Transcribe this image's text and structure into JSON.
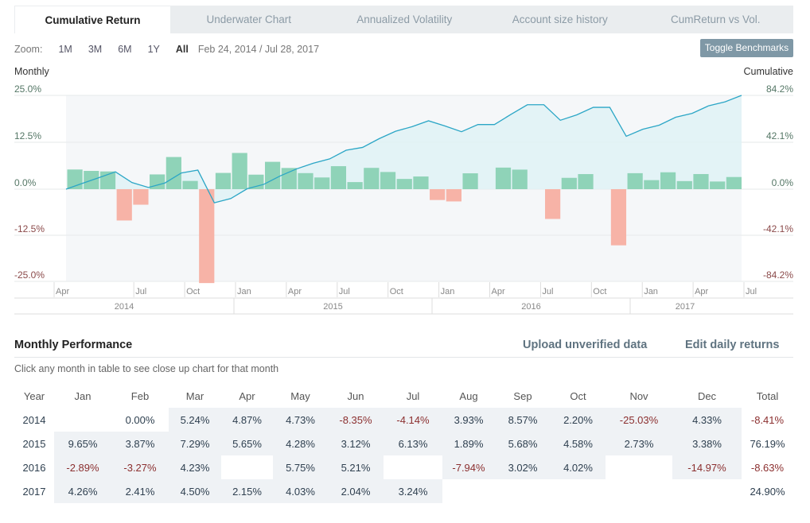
{
  "tabs": [
    "Cumulative Return",
    "Underwater Chart",
    "Annualized Volatility",
    "Account size history",
    "CumReturn vs Vol."
  ],
  "zoom": {
    "label": "Zoom:",
    "options": [
      "1M",
      "3M",
      "6M",
      "1Y",
      "All"
    ],
    "selected": "All",
    "range": "Feb 24, 2014 / Jul 28, 2017"
  },
  "toggle_benchmarks": "Toggle Benchmarks",
  "chart_data": {
    "type": "bar+line",
    "left_axis_title": "Monthly",
    "right_axis_title": "Cumulative",
    "left_ticks": [
      "25.0%",
      "12.5%",
      "0.0%",
      "-12.5%",
      "-25.0%"
    ],
    "right_ticks": [
      "84.2%",
      "42.1%",
      "0.0%",
      "-42.1%",
      "-84.2%"
    ],
    "ylim_left": [
      -25,
      25
    ],
    "ylim_right": [
      -84.2,
      84.2
    ],
    "month_ticks": [
      "Apr",
      "Jul",
      "Oct",
      "Jan",
      "Apr",
      "Jul",
      "Oct",
      "Jan",
      "Apr",
      "Jul",
      "Oct",
      "Jan",
      "Apr",
      "Jul"
    ],
    "year_ticks": [
      "2014",
      "2015",
      "2016",
      "2017"
    ],
    "colors": {
      "positive": "#8fd3b8",
      "negative": "#f7b3a7",
      "line": "#2ba6c6",
      "area": "#dff1f5",
      "plot_bg": "#f5f7f9"
    },
    "series": [
      {
        "type": "bar",
        "note": "monthly returns (%) Mar 2014 – Jul 2017",
        "values": [
          5.24,
          4.87,
          4.73,
          -8.35,
          -4.14,
          3.93,
          8.57,
          2.2,
          -25.03,
          4.33,
          9.65,
          3.87,
          7.29,
          5.65,
          4.28,
          3.12,
          6.13,
          1.89,
          5.68,
          4.58,
          2.73,
          3.38,
          -2.89,
          -3.27,
          4.23,
          null,
          5.75,
          5.21,
          null,
          -7.94,
          3.02,
          4.02,
          null,
          -14.97,
          4.26,
          2.41,
          4.5,
          2.15,
          4.03,
          2.04,
          3.24
        ]
      }
    ]
  },
  "monthly": {
    "title": "Monthly Performance",
    "upload": "Upload unverified data",
    "edit": "Edit daily returns",
    "hint": "Click any month in table to see close up chart for that month",
    "headers": [
      "Year",
      "Jan",
      "Feb",
      "Mar",
      "Apr",
      "May",
      "Jun",
      "Jul",
      "Aug",
      "Sep",
      "Oct",
      "Nov",
      "Dec",
      "Total"
    ],
    "rows": [
      [
        "2014",
        "",
        "0.00%",
        "5.24%",
        "4.87%",
        "4.73%",
        "-8.35%",
        "-4.14%",
        "3.93%",
        "8.57%",
        "2.20%",
        "-25.03%",
        "4.33%",
        "-8.41%"
      ],
      [
        "2015",
        "9.65%",
        "3.87%",
        "7.29%",
        "5.65%",
        "4.28%",
        "3.12%",
        "6.13%",
        "1.89%",
        "5.68%",
        "4.58%",
        "2.73%",
        "3.38%",
        "76.19%"
      ],
      [
        "2016",
        "-2.89%",
        "-3.27%",
        "4.23%",
        "",
        "5.75%",
        "5.21%",
        "",
        "-7.94%",
        "3.02%",
        "4.02%",
        "",
        "-14.97%",
        "-8.63%"
      ],
      [
        "2017",
        "4.26%",
        "2.41%",
        "4.50%",
        "2.15%",
        "4.03%",
        "2.04%",
        "3.24%",
        "",
        "",
        "",
        "",
        "",
        "24.90%"
      ]
    ]
  }
}
